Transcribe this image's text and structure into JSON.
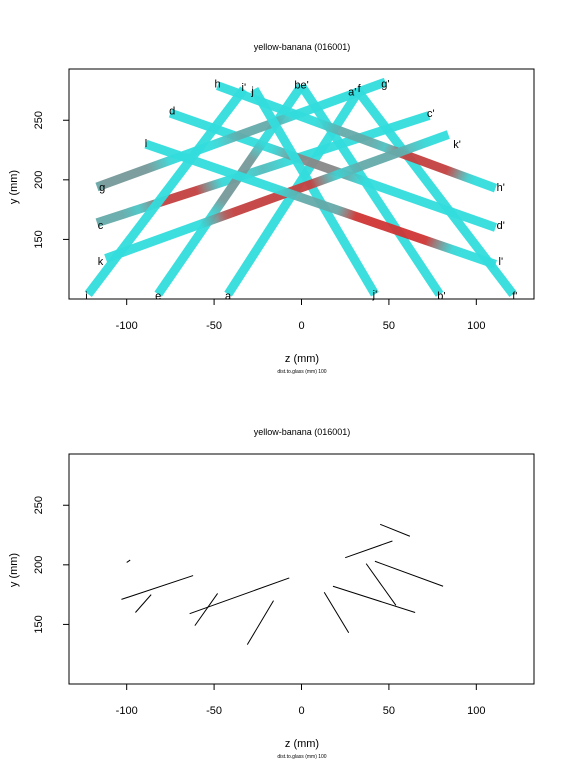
{
  "chart_data": [
    {
      "type": "line",
      "title": "yellow-banana (016001)",
      "xlabel": "z (mm)",
      "ylabel": "y (mm)",
      "subnote": "dist.to.glass (mm) 100",
      "xlim": [
        -133,
        133
      ],
      "ylim": [
        100,
        293
      ],
      "xticks": [
        -100,
        -50,
        0,
        50,
        100
      ],
      "yticks": [
        150,
        200,
        250
      ],
      "grid": false,
      "colors": {
        "base": "#33dddd",
        "mid": "#888888",
        "hot": "#ee1111"
      },
      "series": [
        {
          "from": "a",
          "to": "a'",
          "p1": [
            -42,
            104
          ],
          "p2": [
            33,
            275
          ]
        },
        {
          "from": "b",
          "to": "b'",
          "p1": [
            0,
            279
          ],
          "p2": [
            79,
            104
          ]
        },
        {
          "from": "c",
          "to": "c'",
          "p1": [
            -117,
            164
          ],
          "p2": [
            73,
            254
          ],
          "heat": [
            [
              0.0,
              0.08,
              0.3
            ],
            [
              0.25,
              0.05,
              0.8
            ],
            [
              0.5,
              0.0,
              0.2
            ]
          ]
        },
        {
          "from": "d",
          "to": "d'",
          "p1": [
            -75,
            256
          ],
          "p2": [
            111,
            160
          ],
          "heat": [
            [
              0.45,
              0.06,
              0.5
            ]
          ]
        },
        {
          "from": "e",
          "to": "e'",
          "p1": [
            -82,
            104
          ],
          "p2": [
            0,
            279
          ],
          "heat": [
            [
              0.55,
              0.1,
              0.4
            ]
          ]
        },
        {
          "from": "f",
          "to": "f'",
          "p1": [
            32,
            275
          ],
          "p2": [
            121,
            104
          ]
        },
        {
          "from": "g",
          "to": "g'",
          "p1": [
            -117,
            194
          ],
          "p2": [
            48,
            282
          ],
          "heat": [
            [
              0.1,
              0.08,
              0.4
            ],
            [
              0.55,
              0.06,
              0.3
            ]
          ]
        },
        {
          "from": "h",
          "to": "h'",
          "p1": [
            -48,
            279
          ],
          "p2": [
            111,
            193
          ],
          "heat": [
            [
              0.5,
              0.06,
              0.3
            ],
            [
              0.75,
              0.08,
              0.8
            ]
          ]
        },
        {
          "from": "i",
          "to": "i'",
          "p1": [
            -122,
            104
          ],
          "p2": [
            -33,
            276
          ]
        },
        {
          "from": "j",
          "to": "j'",
          "p1": [
            -27,
            276
          ],
          "p2": [
            42,
            104
          ]
        },
        {
          "from": "k",
          "to": "k'",
          "p1": [
            -112,
            134
          ],
          "p2": [
            84,
            238
          ],
          "heat": [
            [
              0.48,
              0.12,
              0.8
            ],
            [
              0.8,
              0.06,
              0.3
            ]
          ]
        },
        {
          "from": "l",
          "to": "l'",
          "p1": [
            -89,
            230
          ],
          "p2": [
            111,
            129
          ],
          "heat": [
            [
              0.5,
              0.05,
              0.3
            ],
            [
              0.7,
              0.1,
              0.85
            ]
          ]
        }
      ],
      "point_labels": [
        {
          "text": "a",
          "x": -42,
          "y": 103
        },
        {
          "text": "e",
          "x": -82,
          "y": 103
        },
        {
          "text": "i",
          "x": -123,
          "y": 103
        },
        {
          "text": "j'",
          "x": 42,
          "y": 104
        },
        {
          "text": "b'",
          "x": 80,
          "y": 103
        },
        {
          "text": "f'",
          "x": 122,
          "y": 103
        },
        {
          "text": "k",
          "x": -115,
          "y": 132
        },
        {
          "text": "c",
          "x": -115,
          "y": 162
        },
        {
          "text": "g",
          "x": -114,
          "y": 194
        },
        {
          "text": "l",
          "x": -89,
          "y": 231
        },
        {
          "text": "d",
          "x": -74,
          "y": 258
        },
        {
          "text": "h",
          "x": -48,
          "y": 281
        },
        {
          "text": "i'",
          "x": -33,
          "y": 278
        },
        {
          "text": "j",
          "x": -28,
          "y": 275
        },
        {
          "text": "be'",
          "x": 0,
          "y": 280
        },
        {
          "text": "a'",
          "x": 29,
          "y": 274
        },
        {
          "text": "f",
          "x": 33,
          "y": 277
        },
        {
          "text": "g'",
          "x": 48,
          "y": 281
        },
        {
          "text": "c'",
          "x": 74,
          "y": 256
        },
        {
          "text": "k'",
          "x": 89,
          "y": 230
        },
        {
          "text": "h'",
          "x": 114,
          "y": 194
        },
        {
          "text": "d'",
          "x": 114,
          "y": 162
        },
        {
          "text": "l'",
          "x": 114,
          "y": 132
        }
      ]
    },
    {
      "type": "line",
      "title": "yellow-banana (016001)",
      "xlabel": "z (mm)",
      "ylabel": "y (mm)",
      "subnote": "dist.to.glass (mm) 100",
      "xlim": [
        -133,
        133
      ],
      "ylim": [
        100,
        293
      ],
      "xticks": [
        -100,
        -50,
        0,
        50,
        100
      ],
      "yticks": [
        150,
        200,
        250
      ],
      "grid": false,
      "colors": {
        "line": "#000000"
      },
      "segments": [
        [
          [
            -100,
            202
          ],
          [
            -98,
            204
          ]
        ],
        [
          [
            -103,
            171
          ],
          [
            -62,
            191
          ]
        ],
        [
          [
            -95,
            160
          ],
          [
            -86,
            175
          ]
        ],
        [
          [
            -64,
            159
          ],
          [
            -7,
            189
          ]
        ],
        [
          [
            -61,
            149
          ],
          [
            -48,
            176
          ]
        ],
        [
          [
            -31,
            133
          ],
          [
            -16,
            170
          ]
        ],
        [
          [
            13,
            177
          ],
          [
            27,
            143
          ]
        ],
        [
          [
            18,
            182
          ],
          [
            65,
            160
          ]
        ],
        [
          [
            37,
            201
          ],
          [
            54,
            166
          ]
        ],
        [
          [
            42,
            203
          ],
          [
            81,
            182
          ]
        ],
        [
          [
            25,
            206
          ],
          [
            52,
            220
          ]
        ],
        [
          [
            45,
            234
          ],
          [
            62,
            224
          ]
        ]
      ]
    }
  ]
}
